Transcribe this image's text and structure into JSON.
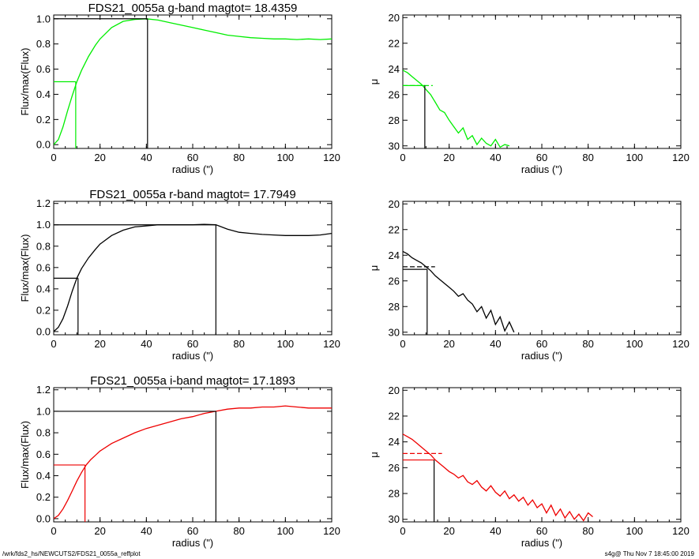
{
  "footer": {
    "path": "/wrk/fds2_hs/NEWCUTS2/FDS21_0055a_reffplot",
    "stamp": "s4g@  Thu Nov  7 18:45:00 2019"
  },
  "chart_data": [
    {
      "type": "line",
      "panel": "g-band growth curve",
      "title": "FDS21_0055a g-band  magtot=      18.4359",
      "xlabel": "radius (\")",
      "ylabel": "Flux/max(Flux)",
      "xlim": [
        0,
        120
      ],
      "ylim": [
        -0.03,
        1.03
      ],
      "xticks": [
        "0",
        "20",
        "40",
        "60",
        "80",
        "100",
        "120"
      ],
      "yticks": [
        "0.0",
        "0.2",
        "0.4",
        "0.6",
        "0.8",
        "1.0"
      ],
      "color": "#00ee00",
      "x": [
        0,
        2,
        4,
        6,
        8,
        10,
        12,
        15,
        18,
        20,
        25,
        30,
        35,
        40,
        45,
        50,
        55,
        60,
        65,
        70,
        75,
        80,
        85,
        90,
        95,
        100,
        105,
        110,
        115,
        120
      ],
      "y": [
        0.0,
        0.04,
        0.14,
        0.27,
        0.39,
        0.5,
        0.59,
        0.7,
        0.79,
        0.84,
        0.93,
        0.98,
        0.995,
        1.0,
        0.99,
        0.97,
        0.95,
        0.93,
        0.91,
        0.89,
        0.87,
        0.86,
        0.85,
        0.845,
        0.84,
        0.84,
        0.835,
        0.84,
        0.835,
        0.84
      ],
      "half_light": {
        "x": 9.5,
        "y": 0.5
      },
      "total": {
        "x": 40.5,
        "y": 1.0
      }
    },
    {
      "type": "line",
      "panel": "g-band surface brightness profile",
      "xlabel": "radius (\")",
      "ylabel": "μ",
      "xlim": [
        0,
        120
      ],
      "ylim": [
        30.2,
        19.8
      ],
      "xticks": [
        "0",
        "20",
        "40",
        "60",
        "80",
        "100",
        "120"
      ],
      "yticks": [
        "20",
        "22",
        "24",
        "26",
        "28",
        "30"
      ],
      "color": "#00ee00",
      "x": [
        0,
        2,
        4,
        6,
        8,
        10,
        12,
        14,
        16,
        18,
        20,
        22,
        24,
        26,
        28,
        30,
        32,
        34,
        36,
        38,
        40,
        42,
        44,
        46
      ],
      "y": [
        24.1,
        24.3,
        24.6,
        24.9,
        25.2,
        25.6,
        26.0,
        26.6,
        27.2,
        27.4,
        28.0,
        28.5,
        29.0,
        28.6,
        29.5,
        29.2,
        29.9,
        29.4,
        29.8,
        30.0,
        29.5,
        30.1,
        29.9,
        30.0
      ],
      "mu_mean": {
        "x": 9.5,
        "y": 25.3
      },
      "mu_eff": {
        "x": 9.5,
        "y": 25.3
      }
    },
    {
      "type": "line",
      "panel": "r-band growth curve",
      "title": "FDS21_0055a r-band  magtot=      17.7949",
      "xlabel": "radius (\")",
      "ylabel": "Flux/max(Flux)",
      "xlim": [
        0,
        120
      ],
      "ylim": [
        -0.03,
        1.22
      ],
      "xticks": [
        "0",
        "20",
        "40",
        "60",
        "80",
        "100",
        "120"
      ],
      "yticks": [
        "0.0",
        "0.2",
        "0.4",
        "0.6",
        "0.8",
        "1.0",
        "1.2"
      ],
      "color": "#000000",
      "x": [
        0,
        2,
        4,
        6,
        8,
        10,
        12,
        15,
        18,
        20,
        25,
        30,
        35,
        40,
        45,
        50,
        55,
        60,
        65,
        70,
        75,
        80,
        85,
        90,
        95,
        100,
        105,
        110,
        115,
        120
      ],
      "y": [
        0.0,
        0.04,
        0.12,
        0.24,
        0.38,
        0.5,
        0.59,
        0.69,
        0.77,
        0.82,
        0.9,
        0.95,
        0.98,
        0.99,
        1.0,
        1.0,
        1.0,
        1.0,
        1.005,
        1.0,
        0.96,
        0.93,
        0.92,
        0.91,
        0.905,
        0.9,
        0.9,
        0.9,
        0.905,
        0.92
      ],
      "half_light": {
        "x": 10.5,
        "y": 0.5
      },
      "total": {
        "x": 70,
        "y": 1.0
      }
    },
    {
      "type": "line",
      "panel": "r-band surface brightness profile",
      "xlabel": "radius (\")",
      "ylabel": "μ",
      "xlim": [
        0,
        120
      ],
      "ylim": [
        30.2,
        19.8
      ],
      "xticks": [
        "0",
        "20",
        "40",
        "60",
        "80",
        "100",
        "120"
      ],
      "yticks": [
        "20",
        "22",
        "24",
        "26",
        "28",
        "30"
      ],
      "color": "#000000",
      "x": [
        0,
        2,
        4,
        6,
        8,
        10,
        12,
        14,
        16,
        18,
        20,
        22,
        24,
        26,
        28,
        30,
        32,
        34,
        36,
        38,
        40,
        42,
        44,
        46,
        48
      ],
      "y": [
        23.7,
        23.9,
        24.2,
        24.4,
        24.6,
        24.9,
        25.2,
        25.6,
        25.9,
        26.2,
        26.5,
        26.8,
        27.2,
        27.0,
        27.5,
        27.8,
        28.4,
        28.0,
        28.9,
        28.3,
        29.4,
        28.8,
        29.9,
        29.2,
        30.0
      ],
      "mu_mean": {
        "x": 10.5,
        "y": 24.9
      },
      "mu_eff": {
        "x": 10.5,
        "y": 25.1
      }
    },
    {
      "type": "line",
      "panel": "i-band growth curve",
      "title": "FDS21_0055a i-band  magtot=      17.1893",
      "xlabel": "radius (\")",
      "ylabel": "Flux/max(Flux)",
      "xlim": [
        0,
        120
      ],
      "ylim": [
        -0.03,
        1.22
      ],
      "xticks": [
        "0",
        "20",
        "40",
        "60",
        "80",
        "100",
        "120"
      ],
      "yticks": [
        "0.0",
        "0.2",
        "0.4",
        "0.6",
        "0.8",
        "1.0",
        "1.2"
      ],
      "color": "#ee0000",
      "x": [
        0,
        2,
        4,
        6,
        8,
        10,
        12,
        14,
        16,
        18,
        20,
        25,
        30,
        35,
        40,
        45,
        50,
        55,
        60,
        65,
        70,
        75,
        80,
        85,
        90,
        95,
        100,
        105,
        110,
        115,
        120
      ],
      "y": [
        0.0,
        0.03,
        0.09,
        0.17,
        0.26,
        0.35,
        0.43,
        0.5,
        0.55,
        0.59,
        0.63,
        0.7,
        0.75,
        0.8,
        0.84,
        0.87,
        0.9,
        0.93,
        0.95,
        0.98,
        1.0,
        1.02,
        1.03,
        1.03,
        1.04,
        1.04,
        1.05,
        1.04,
        1.03,
        1.03,
        1.03
      ],
      "half_light": {
        "x": 13.5,
        "y": 0.5
      },
      "total": {
        "x": 70,
        "y": 1.0
      }
    },
    {
      "type": "line",
      "panel": "i-band surface brightness profile",
      "xlabel": "radius (\")",
      "ylabel": "μ",
      "xlim": [
        0,
        120
      ],
      "ylim": [
        30.2,
        19.8
      ],
      "xticks": [
        "0",
        "20",
        "40",
        "60",
        "80",
        "100",
        "120"
      ],
      "yticks": [
        "20",
        "22",
        "24",
        "26",
        "28",
        "30"
      ],
      "color": "#ee0000",
      "x": [
        0,
        2,
        4,
        6,
        8,
        10,
        12,
        14,
        16,
        18,
        20,
        22,
        24,
        26,
        28,
        30,
        32,
        34,
        36,
        38,
        40,
        42,
        44,
        46,
        48,
        50,
        52,
        54,
        56,
        58,
        60,
        62,
        64,
        66,
        68,
        70,
        72,
        74,
        76,
        78,
        80,
        82
      ],
      "y": [
        23.4,
        23.6,
        23.8,
        24.1,
        24.4,
        24.7,
        25.0,
        25.4,
        25.7,
        26.0,
        26.3,
        26.5,
        26.8,
        26.6,
        27.1,
        27.3,
        27.0,
        27.5,
        27.8,
        27.4,
        27.9,
        28.2,
        27.8,
        28.4,
        28.1,
        28.6,
        28.3,
        28.9,
        28.5,
        29.1,
        28.8,
        29.5,
        28.9,
        29.7,
        29.2,
        29.9,
        29.4,
        30.0,
        29.6,
        30.1,
        29.5,
        29.8
      ],
      "mu_mean": {
        "x": 13.5,
        "y": 24.9
      },
      "mu_eff": {
        "x": 13.5,
        "y": 25.4
      }
    }
  ]
}
